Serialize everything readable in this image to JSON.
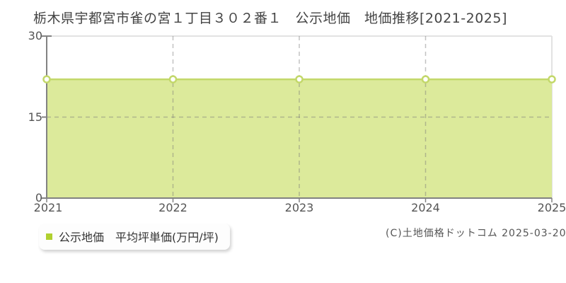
{
  "title": "栃木県宇都宮市雀の宮１丁目３０２番１　公示地価　地価推移[2021-2025]",
  "legend": {
    "swatch_icon": "square-swatch-icon",
    "label": "公示地価　平均坪単価(万円/坪)"
  },
  "footer": {
    "copyright": "(C)土地価格ドットコム 2025-03-20"
  },
  "chart_data": {
    "type": "area",
    "title": "栃木県宇都宮市雀の宮１丁目３０２番１ 公示地価 地価推移[2021-2025]",
    "x": [
      2021,
      2022,
      2023,
      2024,
      2025
    ],
    "series": [
      {
        "name": "公示地価 平均坪単価(万円/坪)",
        "values": [
          22,
          22,
          22,
          22,
          22
        ]
      }
    ],
    "xlabel": "",
    "ylabel": "平均坪単価(万円/坪)",
    "ylim": [
      0,
      30
    ],
    "yticks": [
      0,
      15,
      30
    ],
    "xticks": [
      2021,
      2022,
      2023,
      2024,
      2025
    ],
    "grid": true,
    "legend_position": "bottom-left",
    "marker": "open-circle",
    "colors": {
      "area_fill": "#dcea9b",
      "line": "#c3d86a",
      "marker_fill": "#ffffff",
      "marker_stroke": "#c3d86a",
      "legend_swatch": "#b0d02f",
      "axis": "#828282",
      "border_gridline": "#e2e2e2",
      "dashed_gridline": "rgba(120,120,120,0.45)",
      "tick_label": "#555555"
    }
  }
}
